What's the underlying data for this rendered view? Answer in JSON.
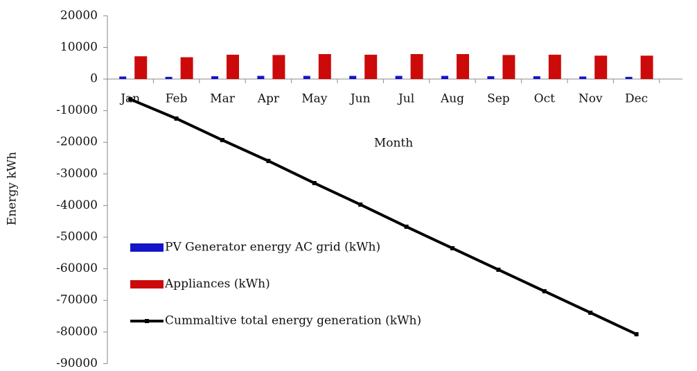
{
  "chart_data": {
    "type": "bar",
    "x_label": "Month",
    "y_label": "Energy  kWh",
    "categories": [
      "Jan",
      "Feb",
      "Mar",
      "Apr",
      "May",
      "Jun",
      "Jul",
      "Aug",
      "Sep",
      "Oct",
      "Nov",
      "Dec"
    ],
    "series": [
      {
        "name": "PV Generator energy AC grid (kWh)",
        "type": "bar",
        "color": "#1414c8",
        "values": [
          800,
          700,
          900,
          1000,
          1000,
          1000,
          1000,
          1000,
          900,
          900,
          800,
          700
        ]
      },
      {
        "name": "Appliances (kWh)",
        "type": "bar",
        "color": "#cc0a0a",
        "values": [
          7200,
          6900,
          7700,
          7600,
          7900,
          7700,
          7900,
          7900,
          7600,
          7700,
          7400,
          7400
        ]
      },
      {
        "name": "Cummaltive total energy generation (kWh)",
        "type": "line",
        "color": "#000000",
        "values": [
          -6400,
          -12500,
          -19300,
          -25900,
          -32900,
          -39700,
          -46700,
          -53500,
          -60300,
          -67100,
          -73900,
          -80700
        ]
      }
    ],
    "ylim": [
      -90000,
      20000
    ],
    "yticks": [
      -90000,
      -80000,
      -70000,
      -60000,
      -50000,
      -40000,
      -30000,
      -20000,
      -10000,
      0,
      10000,
      20000
    ],
    "legend": "inside-lower-left"
  }
}
